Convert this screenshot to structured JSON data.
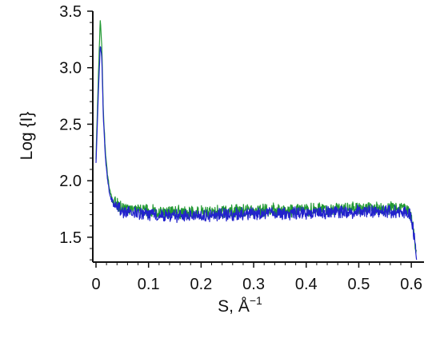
{
  "chart_data": {
    "type": "line",
    "title": "",
    "xlabel": "S, Å",
    "xlabel_superscript": "−1",
    "ylabel": "Log {I}",
    "xlim": [
      0,
      0.615
    ],
    "ylim": [
      1.28,
      3.5
    ],
    "x_ticks": [
      "0",
      "0.1",
      "0.2",
      "0.3",
      "0.4",
      "0.5",
      "0.6"
    ],
    "y_ticks": [
      "1.5",
      "2.0",
      "2.5",
      "3.0",
      "3.5"
    ],
    "grid": false,
    "legend": "none",
    "series": [
      {
        "color": "#2222cc",
        "x": [
          0.0,
          0.004,
          0.008,
          0.011,
          0.014,
          0.018,
          0.022,
          0.026,
          0.03,
          0.04,
          0.05,
          0.06,
          0.08,
          0.1,
          0.15,
          0.2,
          0.25,
          0.3,
          0.35,
          0.4,
          0.45,
          0.5,
          0.55,
          0.58,
          0.595,
          0.6,
          0.605,
          0.61
        ],
        "y": [
          2.15,
          2.7,
          3.2,
          3.1,
          2.55,
          2.2,
          2.0,
          1.88,
          1.82,
          1.76,
          1.73,
          1.72,
          1.71,
          1.7,
          1.69,
          1.69,
          1.7,
          1.71,
          1.71,
          1.71,
          1.72,
          1.73,
          1.73,
          1.73,
          1.72,
          1.66,
          1.52,
          1.33
        ],
        "noise": 0.05
      },
      {
        "color": "#229933",
        "x": [
          0.0,
          0.004,
          0.008,
          0.011,
          0.014,
          0.018,
          0.022,
          0.026,
          0.03,
          0.04,
          0.05,
          0.06,
          0.08,
          0.1,
          0.15,
          0.2,
          0.25,
          0.3,
          0.35,
          0.4,
          0.45,
          0.5,
          0.55,
          0.58,
          0.595,
          0.6,
          0.605,
          0.61
        ],
        "y": [
          2.2,
          2.85,
          3.42,
          3.2,
          2.6,
          2.25,
          2.05,
          1.92,
          1.86,
          1.79,
          1.76,
          1.75,
          1.74,
          1.73,
          1.72,
          1.72,
          1.73,
          1.74,
          1.74,
          1.74,
          1.75,
          1.76,
          1.76,
          1.76,
          1.75,
          1.68,
          1.54,
          1.35
        ],
        "noise": 0.05
      }
    ]
  }
}
